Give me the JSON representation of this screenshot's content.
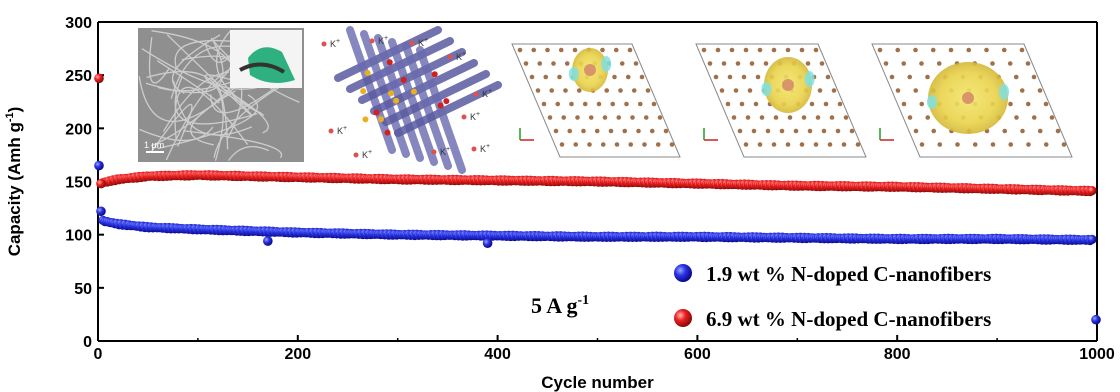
{
  "chart_data": {
    "type": "scatter",
    "xlabel": "Cycle number",
    "ylabel": "Capacity (Amh g",
    "ylabel_sup": "-1",
    "ylabel_end": ")",
    "xlim": [
      0,
      1000
    ],
    "ylim": [
      0,
      300
    ],
    "xticks": [
      0,
      200,
      400,
      600,
      800,
      1000
    ],
    "yticks": [
      0,
      50,
      100,
      150,
      200,
      250,
      300
    ],
    "grid": false,
    "legend_position": "bottom-right",
    "annotation": {
      "text": "5 A g",
      "sup": "-1"
    },
    "inset_labels": {
      "scale_bar": "1 µm",
      "ion": "K",
      "ion_sup": "+"
    },
    "series": [
      {
        "name": "1.9 wt % N-doped C-nanofibers",
        "color": "#1c1ce0",
        "first_points": [
          [
            1,
            165
          ],
          [
            3,
            122
          ]
        ],
        "trend": [
          [
            5,
            113
          ],
          [
            20,
            110
          ],
          [
            50,
            107
          ],
          [
            100,
            105
          ],
          [
            200,
            102
          ],
          [
            300,
            100
          ],
          [
            400,
            99
          ],
          [
            500,
            98
          ],
          [
            600,
            98
          ],
          [
            700,
            97
          ],
          [
            800,
            96
          ],
          [
            900,
            96
          ],
          [
            995,
            95
          ]
        ],
        "outliers": [
          [
            170,
            94
          ],
          [
            390,
            92
          ],
          [
            999,
            20
          ]
        ]
      },
      {
        "name": "6.9 wt % N-doped C-nanofibers",
        "color": "#e01818",
        "first_points": [
          [
            1,
            247
          ],
          [
            3,
            148
          ]
        ],
        "trend": [
          [
            5,
            149
          ],
          [
            20,
            152
          ],
          [
            50,
            155
          ],
          [
            100,
            156
          ],
          [
            200,
            154
          ],
          [
            300,
            152
          ],
          [
            400,
            151
          ],
          [
            500,
            150
          ],
          [
            600,
            148
          ],
          [
            700,
            146
          ],
          [
            800,
            145
          ],
          [
            900,
            143
          ],
          [
            995,
            141
          ]
        ],
        "outliers": []
      }
    ]
  }
}
